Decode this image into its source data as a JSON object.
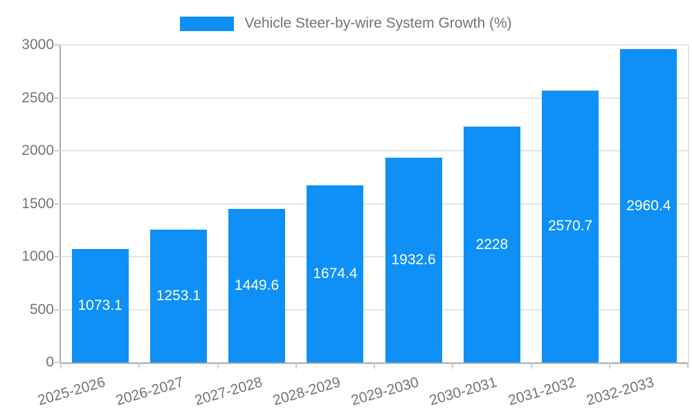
{
  "chart_data": {
    "type": "bar",
    "title": "Vehicle Steer-by-wire System Growth (%)",
    "categories": [
      "2025-2026",
      "2026-2027",
      "2027-2028",
      "2028-2029",
      "2029-2030",
      "2030-2031",
      "2031-2032",
      "2032-2033"
    ],
    "values": [
      1073.1,
      1253.1,
      1449.6,
      1674.4,
      1932.6,
      2228,
      2570.7,
      2960.4
    ],
    "value_labels": [
      "1073.1",
      "1253.1",
      "1449.6",
      "1674.4",
      "1932.6",
      "2228",
      "2570.7",
      "2960.4"
    ],
    "xlabel": "",
    "ylabel": "",
    "ylim": [
      0,
      3000
    ],
    "yticks": [
      0,
      500,
      1000,
      1500,
      2000,
      2500,
      3000
    ],
    "ytick_labels": [
      "0",
      "500",
      "1000",
      "1500",
      "2000",
      "2500",
      "3000"
    ],
    "grid": true,
    "legend_position": "top-center",
    "value_label_position": "inside-center"
  },
  "colors": {
    "bar": "#0e90f6",
    "grid": "#e5e5e5",
    "axis": "#a8a8a8",
    "tick": "#cccccc",
    "tick_text": "#757575",
    "legend_text": "#737373",
    "bar_label_text": "#ffffff",
    "background": "#ffffff"
  }
}
